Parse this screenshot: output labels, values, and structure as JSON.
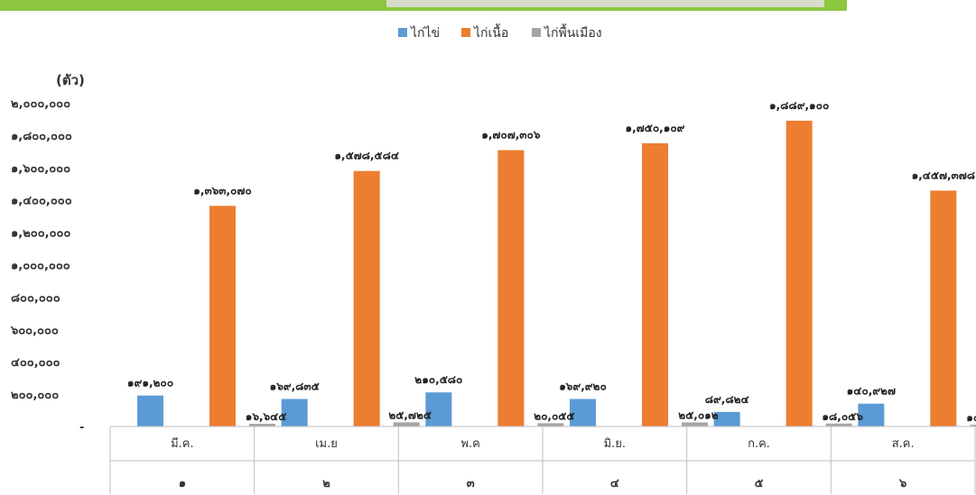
{
  "chart_data": {
    "type": "bar",
    "unit_label": "(ตัว)",
    "ylim": [
      0,
      2000000
    ],
    "yticks": [
      0,
      200000,
      400000,
      600000,
      800000,
      1000000,
      1200000,
      1400000,
      1600000,
      1800000,
      2000000
    ],
    "ytick_labels": [
      "-",
      "๒๐๐,๐๐๐",
      "๔๐๐,๐๐๐",
      "๖๐๐,๐๐๐",
      "๘๐๐,๐๐๐",
      "๑,๐๐๐,๐๐๐",
      "๑,๒๐๐,๐๐๐",
      "๑,๔๐๐,๐๐๐",
      "๑,๖๐๐,๐๐๐",
      "๑,๘๐๐,๐๐๐",
      "๒,๐๐๐,๐๐๐"
    ],
    "categories": [
      "มี.ค.",
      "เม.ย",
      "พ.ค",
      "มิ.ย.",
      "ก.ค.",
      "ส.ค."
    ],
    "category_numbers": [
      "๑",
      "๒",
      "๓",
      "๔",
      "๕",
      "๖"
    ],
    "legend_position": "top-center",
    "grid": false,
    "series": [
      {
        "name": "ไก่ไข่",
        "color": "#5b9bd5",
        "values": [
          191200,
          169835,
          210580,
          169920,
          89824,
          140927
        ],
        "labels": [
          "๑๙๑,๒๐๐",
          "๑๖๙,๘๓๕",
          "๒๑๐,๕๘๐",
          "๑๖๙,๙๒๐",
          "๘๙,๘๒๔",
          "๑๔๐,๙๒๗"
        ]
      },
      {
        "name": "ไก่เนื้อ",
        "color": "#ed7d31",
        "values": [
          1363070,
          1578584,
          1707306,
          1750109,
          1889100,
          1457378
        ],
        "labels": [
          "๑,๓๖๓,๐๗๐",
          "๑,๕๗๘,๕๘๔",
          "๑,๗๐๗,๓๐๖",
          "๑,๗๕๐,๑๐๙",
          "๑,๘๘๙,๑๐๐",
          "๑,๔๕๗,๓๗๘"
        ]
      },
      {
        "name": "ไก่พื้นเมือง",
        "color": "#a5a5a5",
        "values": [
          16645,
          25725,
          20055,
          25012,
          18056,
          10765
        ],
        "labels": [
          "๑๖,๖๔๕",
          "๒๕,๗๒๕",
          "๒๐,๐๕๕",
          "๒๕,๐๑๒",
          "๑๘,๐๕๖",
          "๑๐,๗๖๕"
        ]
      }
    ]
  }
}
